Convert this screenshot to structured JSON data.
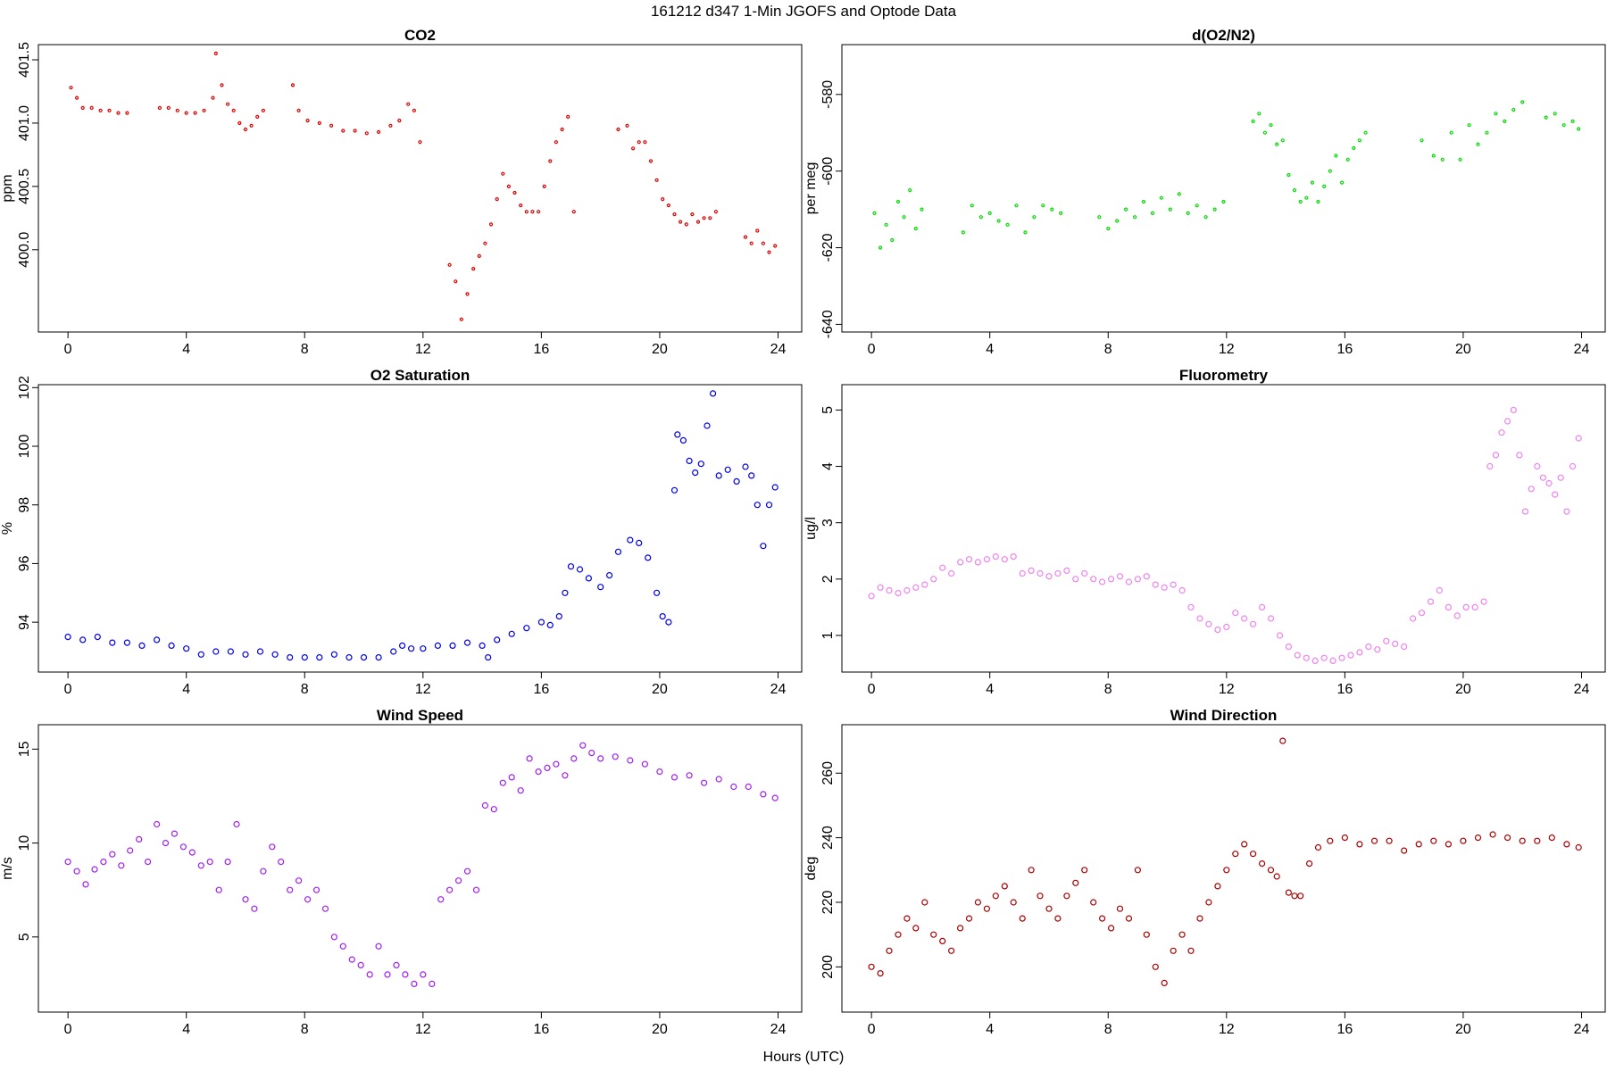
{
  "figure": {
    "title": "161212   d347   1-Min  JGOFS and Optode Data",
    "xlabel": "Hours (UTC)"
  },
  "chart_data": [
    {
      "type": "scatter",
      "id": "co2",
      "title": "CO2",
      "ylabel": "ppm",
      "color": "#e00000",
      "point_radius": 1.5,
      "xlim": [
        -1,
        24.8
      ],
      "ylim": [
        399.35,
        401.62
      ],
      "xticks": [
        0,
        4,
        8,
        12,
        16,
        20,
        24
      ],
      "yticks": [
        400.0,
        400.5,
        401.0,
        401.5
      ],
      "ytick_labels": [
        "400.0",
        "400.5",
        "401.0",
        "401.5"
      ],
      "x": [
        0.1,
        0.3,
        0.5,
        0.8,
        1.1,
        1.4,
        1.7,
        2.0,
        3.1,
        3.4,
        3.7,
        4.0,
        4.3,
        4.6,
        4.9,
        5.0,
        5.2,
        5.4,
        5.6,
        5.8,
        6.0,
        6.2,
        6.4,
        6.6,
        7.6,
        7.8,
        8.1,
        8.5,
        8.9,
        9.3,
        9.7,
        10.1,
        10.5,
        10.9,
        11.2,
        11.5,
        11.7,
        11.9,
        12.9,
        13.1,
        13.3,
        13.5,
        13.7,
        13.9,
        14.1,
        14.3,
        14.5,
        14.7,
        14.9,
        15.1,
        15.3,
        15.5,
        15.7,
        15.9,
        16.1,
        16.3,
        16.5,
        16.7,
        16.9,
        17.1,
        18.6,
        18.9,
        19.1,
        19.3,
        19.5,
        19.7,
        19.9,
        20.1,
        20.3,
        20.5,
        20.7,
        20.9,
        21.1,
        21.3,
        21.5,
        21.7,
        21.9,
        22.9,
        23.1,
        23.3,
        23.5,
        23.7,
        23.9
      ],
      "y": [
        401.28,
        401.2,
        401.12,
        401.12,
        401.1,
        401.1,
        401.08,
        401.08,
        401.12,
        401.12,
        401.1,
        401.08,
        401.08,
        401.1,
        401.2,
        401.55,
        401.3,
        401.15,
        401.1,
        401.0,
        400.95,
        400.98,
        401.05,
        401.1,
        401.3,
        401.1,
        401.02,
        401.0,
        400.98,
        400.94,
        400.94,
        400.92,
        400.93,
        400.98,
        401.02,
        401.15,
        401.1,
        400.85,
        399.88,
        399.75,
        399.45,
        399.65,
        399.85,
        399.95,
        400.05,
        400.2,
        400.4,
        400.6,
        400.5,
        400.45,
        400.35,
        400.3,
        400.3,
        400.3,
        400.5,
        400.7,
        400.85,
        400.95,
        401.05,
        400.3,
        400.95,
        400.98,
        400.8,
        400.85,
        400.85,
        400.7,
        400.55,
        400.4,
        400.35,
        400.28,
        400.22,
        400.2,
        400.28,
        400.22,
        400.25,
        400.25,
        400.3,
        400.1,
        400.05,
        400.15,
        400.05,
        399.98,
        400.03
      ]
    },
    {
      "type": "scatter",
      "id": "do2n2",
      "title": "d(O2/N2)",
      "ylabel": "per meg",
      "color": "#00dd00",
      "point_radius": 1.5,
      "xlim": [
        -1,
        24.8
      ],
      "ylim": [
        -642,
        -567
      ],
      "xticks": [
        0,
        4,
        8,
        12,
        16,
        20,
        24
      ],
      "yticks": [
        -640,
        -620,
        -600,
        -580
      ],
      "ytick_labels": [
        "-640",
        "-620",
        "-600",
        "-580"
      ],
      "x": [
        0.1,
        0.3,
        0.5,
        0.7,
        0.9,
        1.1,
        1.3,
        1.5,
        1.7,
        3.1,
        3.4,
        3.7,
        4.0,
        4.3,
        4.6,
        4.9,
        5.2,
        5.5,
        5.8,
        6.1,
        6.4,
        7.7,
        8.0,
        8.3,
        8.6,
        8.9,
        9.2,
        9.5,
        9.8,
        10.1,
        10.4,
        10.7,
        11.0,
        11.3,
        11.6,
        11.9,
        12.9,
        13.1,
        13.3,
        13.5,
        13.7,
        13.9,
        14.1,
        14.3,
        14.5,
        14.7,
        14.9,
        15.1,
        15.3,
        15.5,
        15.7,
        15.9,
        16.1,
        16.3,
        16.5,
        16.7,
        18.6,
        19.0,
        19.3,
        19.6,
        19.9,
        20.2,
        20.5,
        20.8,
        21.1,
        21.4,
        21.7,
        22.0,
        22.8,
        23.1,
        23.4,
        23.7,
        23.9
      ],
      "y": [
        -611,
        -620,
        -614,
        -618,
        -608,
        -612,
        -605,
        -615,
        -610,
        -616,
        -609,
        -612,
        -611,
        -613,
        -614,
        -609,
        -616,
        -612,
        -609,
        -610,
        -611,
        -612,
        -615,
        -613,
        -610,
        -612,
        -608,
        -611,
        -607,
        -610,
        -606,
        -611,
        -609,
        -612,
        -610,
        -608,
        -587,
        -585,
        -590,
        -588,
        -593,
        -592,
        -601,
        -605,
        -608,
        -607,
        -603,
        -608,
        -604,
        -600,
        -596,
        -603,
        -597,
        -594,
        -592,
        -590,
        -592,
        -596,
        -597,
        -590,
        -597,
        -588,
        -593,
        -590,
        -585,
        -587,
        -584,
        -582,
        -586,
        -585,
        -588,
        -587,
        -589
      ]
    },
    {
      "type": "scatter",
      "id": "o2sat",
      "title": "O2 Saturation",
      "ylabel": "%",
      "color": "#0000ee",
      "point_radius": 3,
      "xlim": [
        -1,
        24.8
      ],
      "ylim": [
        92.3,
        102.1
      ],
      "xticks": [
        0,
        4,
        8,
        12,
        16,
        20,
        24
      ],
      "yticks": [
        94,
        96,
        98,
        100,
        102
      ],
      "ytick_labels": [
        "94",
        "96",
        "98",
        "100",
        "102"
      ],
      "x": [
        0.0,
        0.5,
        1.0,
        1.5,
        2.0,
        2.5,
        3.0,
        3.5,
        4.0,
        4.5,
        5.0,
        5.5,
        6.0,
        6.5,
        7.0,
        7.5,
        8.0,
        8.5,
        9.0,
        9.5,
        10.0,
        10.5,
        11.0,
        11.3,
        11.6,
        12.0,
        12.5,
        13.0,
        13.5,
        14.0,
        14.2,
        14.5,
        15.0,
        15.5,
        16.0,
        16.3,
        16.6,
        16.8,
        17.0,
        17.3,
        17.6,
        18.0,
        18.3,
        18.6,
        19.0,
        19.3,
        19.6,
        19.9,
        20.1,
        20.3,
        20.5,
        20.6,
        20.8,
        21.0,
        21.2,
        21.4,
        21.6,
        21.8,
        22.0,
        22.3,
        22.6,
        22.9,
        23.1,
        23.3,
        23.5,
        23.7,
        23.9
      ],
      "y": [
        93.5,
        93.4,
        93.5,
        93.3,
        93.3,
        93.2,
        93.4,
        93.2,
        93.1,
        92.9,
        93.0,
        93.0,
        92.9,
        93.0,
        92.9,
        92.8,
        92.8,
        92.8,
        92.9,
        92.8,
        92.8,
        92.8,
        93.0,
        93.2,
        93.1,
        93.1,
        93.2,
        93.2,
        93.3,
        93.2,
        92.8,
        93.4,
        93.6,
        93.8,
        94.0,
        93.9,
        94.2,
        95.0,
        95.9,
        95.8,
        95.5,
        95.2,
        95.6,
        96.4,
        96.8,
        96.7,
        96.2,
        95.0,
        94.2,
        94.0,
        98.5,
        100.4,
        100.2,
        99.5,
        99.1,
        99.4,
        100.7,
        101.8,
        99.0,
        99.2,
        98.8,
        99.3,
        99.0,
        98.0,
        96.6,
        98.0,
        98.6
      ]
    },
    {
      "type": "scatter",
      "id": "fluorometry",
      "title": "Fluorometry",
      "ylabel": "ug/l",
      "color": "#ee82ee",
      "point_radius": 3,
      "xlim": [
        -1,
        24.8
      ],
      "ylim": [
        0.35,
        5.45
      ],
      "xticks": [
        0,
        4,
        8,
        12,
        16,
        20,
        24
      ],
      "yticks": [
        1,
        2,
        3,
        4,
        5
      ],
      "ytick_labels": [
        "1",
        "2",
        "3",
        "4",
        "5"
      ],
      "x": [
        0.0,
        0.3,
        0.6,
        0.9,
        1.2,
        1.5,
        1.8,
        2.1,
        2.4,
        2.7,
        3.0,
        3.3,
        3.6,
        3.9,
        4.2,
        4.5,
        4.8,
        5.1,
        5.4,
        5.7,
        6.0,
        6.3,
        6.6,
        6.9,
        7.2,
        7.5,
        7.8,
        8.1,
        8.4,
        8.7,
        9.0,
        9.3,
        9.6,
        9.9,
        10.2,
        10.5,
        10.8,
        11.1,
        11.4,
        11.7,
        12.0,
        12.3,
        12.6,
        12.9,
        13.2,
        13.5,
        13.8,
        14.1,
        14.4,
        14.7,
        15.0,
        15.3,
        15.6,
        15.9,
        16.2,
        16.5,
        16.8,
        17.1,
        17.4,
        17.7,
        18.0,
        18.3,
        18.6,
        18.9,
        19.2,
        19.5,
        19.8,
        20.1,
        20.4,
        20.7,
        20.9,
        21.1,
        21.3,
        21.5,
        21.7,
        21.9,
        22.1,
        22.3,
        22.5,
        22.7,
        22.9,
        23.1,
        23.3,
        23.5,
        23.7,
        23.9
      ],
      "y": [
        1.7,
        1.85,
        1.8,
        1.75,
        1.8,
        1.85,
        1.9,
        2.0,
        2.2,
        2.1,
        2.3,
        2.35,
        2.3,
        2.35,
        2.4,
        2.35,
        2.4,
        2.1,
        2.15,
        2.1,
        2.05,
        2.1,
        2.15,
        2.0,
        2.1,
        2.0,
        1.95,
        2.0,
        2.05,
        1.95,
        2.0,
        2.05,
        1.9,
        1.85,
        1.9,
        1.8,
        1.5,
        1.3,
        1.2,
        1.1,
        1.15,
        1.4,
        1.3,
        1.2,
        1.5,
        1.3,
        1.0,
        0.8,
        0.65,
        0.6,
        0.55,
        0.6,
        0.55,
        0.6,
        0.65,
        0.7,
        0.8,
        0.75,
        0.9,
        0.85,
        0.8,
        1.3,
        1.4,
        1.6,
        1.8,
        1.5,
        1.35,
        1.5,
        1.5,
        1.6,
        4.0,
        4.2,
        4.6,
        4.8,
        5.0,
        4.2,
        3.2,
        3.6,
        4.0,
        3.8,
        3.7,
        3.5,
        3.8,
        3.2,
        4.0,
        4.5
      ]
    },
    {
      "type": "scatter",
      "id": "windspeed",
      "title": "Wind Speed",
      "ylabel": "m/s",
      "color": "#a020f0",
      "point_radius": 3,
      "xlim": [
        -1,
        24.8
      ],
      "ylim": [
        1.0,
        16.3
      ],
      "xticks": [
        0,
        4,
        8,
        12,
        16,
        20,
        24
      ],
      "yticks": [
        5,
        10,
        15
      ],
      "ytick_labels": [
        "5",
        "10",
        "15"
      ],
      "x": [
        0.0,
        0.3,
        0.6,
        0.9,
        1.2,
        1.5,
        1.8,
        2.1,
        2.4,
        2.7,
        3.0,
        3.3,
        3.6,
        3.9,
        4.2,
        4.5,
        4.8,
        5.1,
        5.4,
        5.7,
        6.0,
        6.3,
        6.6,
        6.9,
        7.2,
        7.5,
        7.8,
        8.1,
        8.4,
        8.7,
        9.0,
        9.3,
        9.6,
        9.9,
        10.2,
        10.5,
        10.8,
        11.1,
        11.4,
        11.7,
        12.0,
        12.3,
        12.6,
        12.9,
        13.2,
        13.5,
        13.8,
        14.1,
        14.4,
        14.7,
        15.0,
        15.3,
        15.6,
        15.9,
        16.2,
        16.5,
        16.8,
        17.1,
        17.4,
        17.7,
        18.0,
        18.5,
        19.0,
        19.5,
        20.0,
        20.5,
        21.0,
        21.5,
        22.0,
        22.5,
        23.0,
        23.5,
        23.9
      ],
      "y": [
        9.0,
        8.5,
        7.8,
        8.6,
        9.0,
        9.4,
        8.8,
        9.6,
        10.2,
        9.0,
        11.0,
        10.0,
        10.5,
        9.8,
        9.5,
        8.8,
        9.0,
        7.5,
        9.0,
        11.0,
        7.0,
        6.5,
        8.5,
        9.8,
        9.0,
        7.5,
        8.0,
        7.0,
        7.5,
        6.5,
        5.0,
        4.5,
        3.8,
        3.5,
        3.0,
        4.5,
        3.0,
        3.5,
        3.0,
        2.5,
        3.0,
        2.5,
        7.0,
        7.5,
        8.0,
        8.5,
        7.5,
        12.0,
        11.8,
        13.2,
        13.5,
        12.8,
        14.5,
        13.8,
        14.0,
        14.2,
        13.6,
        14.5,
        15.2,
        14.8,
        14.5,
        14.6,
        14.4,
        14.2,
        13.8,
        13.5,
        13.6,
        13.2,
        13.4,
        13.0,
        13.0,
        12.6,
        12.4
      ]
    },
    {
      "type": "scatter",
      "id": "winddir",
      "title": "Wind Direction",
      "ylabel": "deg",
      "color": "#aa0000",
      "point_radius": 3,
      "xlim": [
        -1,
        24.8
      ],
      "ylim": [
        186,
        275
      ],
      "xticks": [
        0,
        4,
        8,
        12,
        16,
        20,
        24
      ],
      "yticks": [
        200,
        220,
        240,
        260
      ],
      "ytick_labels": [
        "200",
        "220",
        "240",
        "260"
      ],
      "x": [
        0.0,
        0.3,
        0.6,
        0.9,
        1.2,
        1.5,
        1.8,
        2.1,
        2.4,
        2.7,
        3.0,
        3.3,
        3.6,
        3.9,
        4.2,
        4.5,
        4.8,
        5.1,
        5.4,
        5.7,
        6.0,
        6.3,
        6.6,
        6.9,
        7.2,
        7.5,
        7.8,
        8.1,
        8.4,
        8.7,
        9.0,
        9.3,
        9.6,
        9.9,
        10.2,
        10.5,
        10.8,
        11.1,
        11.4,
        11.7,
        12.0,
        12.3,
        12.6,
        12.9,
        13.2,
        13.5,
        13.7,
        13.9,
        14.1,
        14.3,
        14.5,
        14.8,
        15.1,
        15.5,
        16.0,
        16.5,
        17.0,
        17.5,
        18.0,
        18.5,
        19.0,
        19.5,
        20.0,
        20.5,
        21.0,
        21.5,
        22.0,
        22.5,
        23.0,
        23.5,
        23.9
      ],
      "y": [
        200,
        198,
        205,
        210,
        215,
        212,
        220,
        210,
        208,
        205,
        212,
        215,
        220,
        218,
        222,
        225,
        220,
        215,
        230,
        222,
        218,
        215,
        222,
        226,
        230,
        220,
        215,
        212,
        218,
        215,
        230,
        210,
        200,
        195,
        205,
        210,
        205,
        215,
        220,
        225,
        230,
        235,
        238,
        235,
        232,
        230,
        228,
        270,
        223,
        222,
        222,
        232,
        237,
        239,
        240,
        238,
        239,
        239,
        236,
        238,
        239,
        238,
        239,
        240,
        241,
        240,
        239,
        239,
        240,
        238,
        237
      ]
    }
  ]
}
